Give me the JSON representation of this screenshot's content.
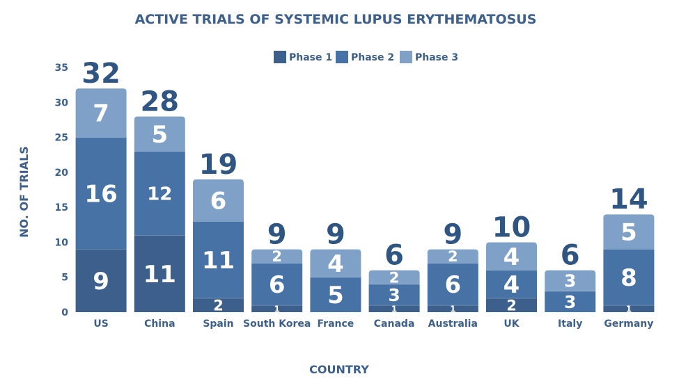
{
  "chart_data": {
    "type": "bar",
    "stacked": true,
    "title": "ACTIVE TRIALS OF SYSTEMIC LUPUS ERYTHEMATOSUS",
    "xlabel": "COUNTRY",
    "ylabel": "NO. OF TRIALS",
    "ylim": [
      0,
      35
    ],
    "yticks": [
      0,
      5,
      10,
      15,
      20,
      25,
      30,
      35
    ],
    "grid": false,
    "legend_position": "top-center",
    "categories": [
      "US",
      "China",
      "Spain",
      "South Korea",
      "France",
      "Canada",
      "Australia",
      "UK",
      "Italy",
      "Germany"
    ],
    "series": [
      {
        "name": "Phase 1",
        "color": "#3d5f8c",
        "values": [
          9,
          11,
          2,
          1,
          0,
          1,
          1,
          2,
          0,
          1
        ]
      },
      {
        "name": "Phase 2",
        "color": "#4672a6",
        "values": [
          16,
          12,
          11,
          6,
          5,
          3,
          6,
          4,
          3,
          8
        ]
      },
      {
        "name": "Phase 3",
        "color": "#7fa1c8",
        "values": [
          7,
          5,
          6,
          2,
          4,
          2,
          2,
          4,
          3,
          5
        ]
      }
    ],
    "totals": [
      32,
      28,
      19,
      9,
      9,
      6,
      9,
      10,
      6,
      14
    ]
  }
}
